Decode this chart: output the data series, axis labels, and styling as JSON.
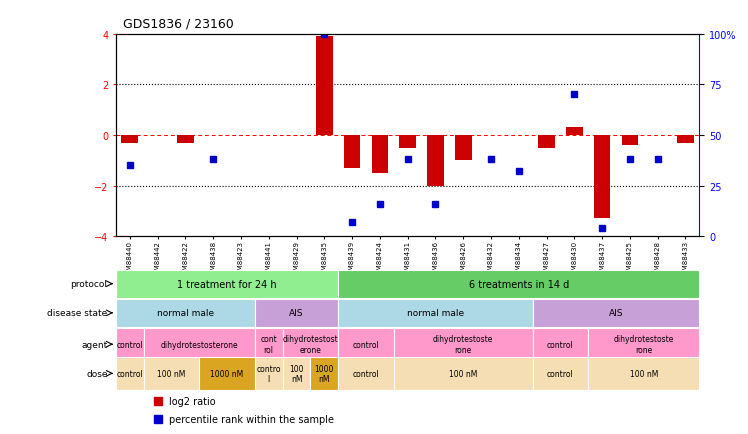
{
  "title": "GDS1836 / 23160",
  "samples": [
    "GSM88440",
    "GSM88442",
    "GSM88422",
    "GSM88438",
    "GSM88423",
    "GSM88441",
    "GSM88429",
    "GSM88435",
    "GSM88439",
    "GSM88424",
    "GSM88431",
    "GSM88436",
    "GSM88426",
    "GSM88432",
    "GSM88434",
    "GSM88427",
    "GSM88430",
    "GSM88437",
    "GSM88425",
    "GSM88428",
    "GSM88433"
  ],
  "log2_ratio": [
    -0.3,
    0.0,
    -0.3,
    0.0,
    0.0,
    0.0,
    0.0,
    3.9,
    -1.3,
    -1.5,
    -0.5,
    -2.0,
    -1.0,
    0.0,
    0.0,
    -0.5,
    0.3,
    -3.3,
    -0.4,
    0.0,
    -0.3
  ],
  "percentile": [
    35,
    0,
    0,
    38,
    0,
    0,
    0,
    100,
    7,
    16,
    38,
    16,
    0,
    38,
    32,
    0,
    70,
    4,
    38,
    38,
    0
  ],
  "protocol_groups": [
    {
      "label": "1 treatment for 24 h",
      "start": 0,
      "end": 8,
      "color": "#90ee90"
    },
    {
      "label": "6 treatments in 14 d",
      "start": 8,
      "end": 21,
      "color": "#66cc66"
    }
  ],
  "disease_state_groups": [
    {
      "label": "normal male",
      "start": 0,
      "end": 5,
      "color": "#add8e6"
    },
    {
      "label": "AIS",
      "start": 5,
      "end": 8,
      "color": "#c8a0d8"
    },
    {
      "label": "normal male",
      "start": 8,
      "end": 15,
      "color": "#add8e6"
    },
    {
      "label": "AIS",
      "start": 15,
      "end": 21,
      "color": "#c8a0d8"
    }
  ],
  "agent_groups": [
    {
      "label": "control",
      "start": 0,
      "end": 1,
      "color": "#ff99cc"
    },
    {
      "label": "dihydrotestosterone",
      "start": 1,
      "end": 5,
      "color": "#ff99cc"
    },
    {
      "label": "cont\nrol",
      "start": 5,
      "end": 6,
      "color": "#ff99cc"
    },
    {
      "label": "dihydrotestost\nerone",
      "start": 6,
      "end": 8,
      "color": "#ff99cc"
    },
    {
      "label": "control",
      "start": 8,
      "end": 10,
      "color": "#ff99cc"
    },
    {
      "label": "dihydrotestoste\nrone",
      "start": 10,
      "end": 15,
      "color": "#ff99cc"
    },
    {
      "label": "control",
      "start": 15,
      "end": 17,
      "color": "#ff99cc"
    },
    {
      "label": "dihydrotestoste\nrone",
      "start": 17,
      "end": 21,
      "color": "#ff99cc"
    }
  ],
  "dose_groups": [
    {
      "label": "control",
      "start": 0,
      "end": 1,
      "color": "#f5deb3"
    },
    {
      "label": "100 nM",
      "start": 1,
      "end": 3,
      "color": "#f5deb3"
    },
    {
      "label": "1000 nM",
      "start": 3,
      "end": 5,
      "color": "#daa520"
    },
    {
      "label": "contro\nl",
      "start": 5,
      "end": 6,
      "color": "#f5deb3"
    },
    {
      "label": "100\nnM",
      "start": 6,
      "end": 7,
      "color": "#f5deb3"
    },
    {
      "label": "1000\nnM",
      "start": 7,
      "end": 8,
      "color": "#daa520"
    },
    {
      "label": "control",
      "start": 8,
      "end": 10,
      "color": "#f5deb3"
    },
    {
      "label": "100 nM",
      "start": 10,
      "end": 15,
      "color": "#f5deb3"
    },
    {
      "label": "control",
      "start": 15,
      "end": 17,
      "color": "#f5deb3"
    },
    {
      "label": "100 nM",
      "start": 17,
      "end": 21,
      "color": "#f5deb3"
    }
  ],
  "ylim": [
    -4,
    4
  ],
  "y2lim": [
    0,
    100
  ],
  "yticks": [
    -4,
    -2,
    0,
    2,
    4
  ],
  "y2ticks": [
    0,
    25,
    50,
    75,
    100
  ],
  "y2ticklabels": [
    "0",
    "25",
    "50",
    "75",
    "100%"
  ],
  "bar_color": "#cc0000",
  "dot_color": "#0000cc",
  "legend_items": [
    {
      "label": "log2 ratio",
      "color": "#cc0000"
    },
    {
      "label": "percentile rank within the sample",
      "color": "#0000cc"
    }
  ]
}
